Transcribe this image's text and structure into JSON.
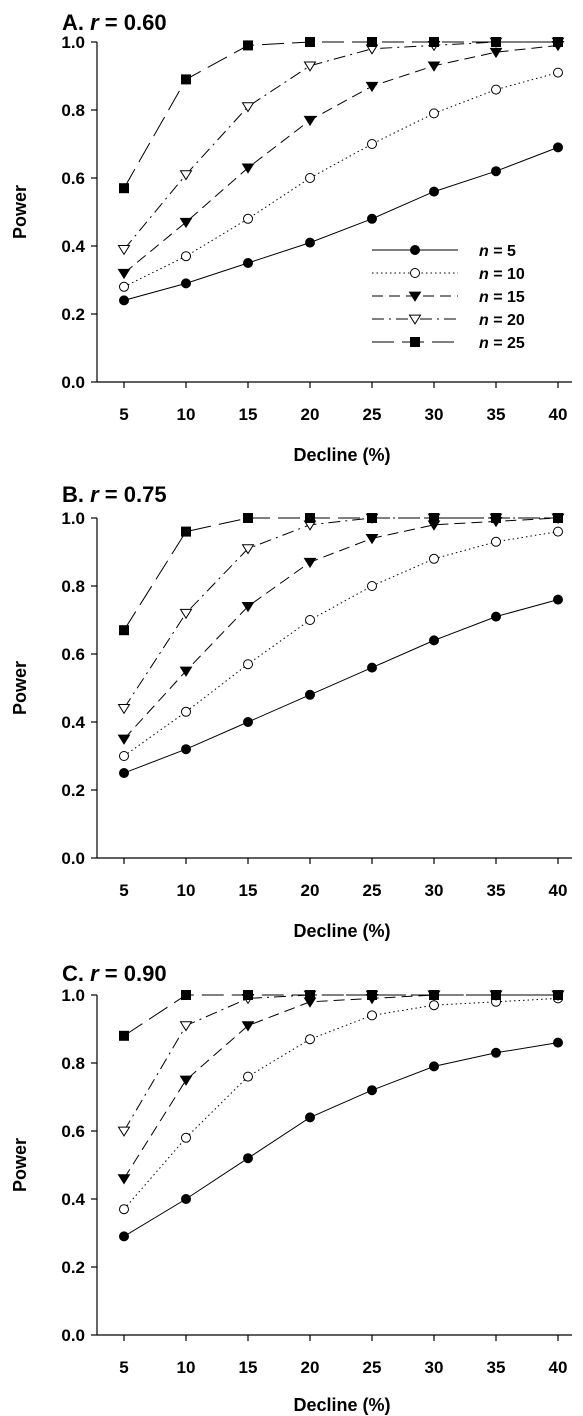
{
  "chart_data": [
    {
      "type": "line",
      "title": "A. r = 0.60",
      "title_parts": {
        "prefix": "A. ",
        "var": "r",
        "suffix": " = 0.60"
      },
      "xlabel": "Decline (%)",
      "ylabel": "Power",
      "x": [
        5,
        10,
        15,
        20,
        25,
        30,
        35,
        40
      ],
      "xticks": [
        "5",
        "10",
        "15",
        "20",
        "25",
        "30",
        "35",
        "40"
      ],
      "ylim": [
        0,
        1
      ],
      "yticks": [
        "0.0",
        "0.2",
        "0.4",
        "0.6",
        "0.8",
        "1.0"
      ],
      "grid": false,
      "legend_position": "bottom-right",
      "legend_var": "n",
      "series": [
        {
          "name": "n = 5",
          "legend_value": "= 5",
          "values": [
            0.24,
            0.29,
            0.35,
            0.41,
            0.48,
            0.56,
            0.62,
            0.69
          ]
        },
        {
          "name": "n = 10",
          "legend_value": "= 10",
          "values": [
            0.28,
            0.37,
            0.48,
            0.6,
            0.7,
            0.79,
            0.86,
            0.91
          ]
        },
        {
          "name": "n = 15",
          "legend_value": "= 15",
          "values": [
            0.32,
            0.47,
            0.63,
            0.77,
            0.87,
            0.93,
            0.97,
            0.99
          ]
        },
        {
          "name": "n = 20",
          "legend_value": "= 20",
          "values": [
            0.39,
            0.61,
            0.81,
            0.93,
            0.98,
            0.99,
            1.0,
            1.0
          ]
        },
        {
          "name": "n = 25",
          "legend_value": "= 25",
          "values": [
            0.57,
            0.89,
            0.99,
            1.0,
            1.0,
            1.0,
            1.0,
            1.0
          ]
        }
      ]
    },
    {
      "type": "line",
      "title": "B. r = 0.75",
      "title_parts": {
        "prefix": "B. ",
        "var": "r",
        "suffix": " = 0.75"
      },
      "xlabel": "Decline (%)",
      "ylabel": "Power",
      "x": [
        5,
        10,
        15,
        20,
        25,
        30,
        35,
        40
      ],
      "xticks": [
        "5",
        "10",
        "15",
        "20",
        "25",
        "30",
        "35",
        "40"
      ],
      "ylim": [
        0,
        1
      ],
      "yticks": [
        "0.0",
        "0.2",
        "0.4",
        "0.6",
        "0.8",
        "1.0"
      ],
      "grid": false,
      "series": [
        {
          "name": "n = 5",
          "values": [
            0.25,
            0.32,
            0.4,
            0.48,
            0.56,
            0.64,
            0.71,
            0.76
          ]
        },
        {
          "name": "n = 10",
          "values": [
            0.3,
            0.43,
            0.57,
            0.7,
            0.8,
            0.88,
            0.93,
            0.96
          ]
        },
        {
          "name": "n = 15",
          "values": [
            0.35,
            0.55,
            0.74,
            0.87,
            0.94,
            0.98,
            0.99,
            1.0
          ]
        },
        {
          "name": "n = 20",
          "values": [
            0.44,
            0.72,
            0.91,
            0.98,
            1.0,
            1.0,
            1.0,
            1.0
          ]
        },
        {
          "name": "n = 25",
          "values": [
            0.67,
            0.96,
            1.0,
            1.0,
            1.0,
            1.0,
            1.0,
            1.0
          ]
        }
      ]
    },
    {
      "type": "line",
      "title": "C. r = 0.90",
      "title_parts": {
        "prefix": "C. ",
        "var": "r",
        "suffix": " = 0.90"
      },
      "xlabel": "Decline (%)",
      "ylabel": "Power",
      "x": [
        5,
        10,
        15,
        20,
        25,
        30,
        35,
        40
      ],
      "xticks": [
        "5",
        "10",
        "15",
        "20",
        "25",
        "30",
        "35",
        "40"
      ],
      "ylim": [
        0,
        1
      ],
      "yticks": [
        "0.0",
        "0.2",
        "0.4",
        "0.6",
        "0.8",
        "1.0"
      ],
      "grid": false,
      "series": [
        {
          "name": "n = 5",
          "values": [
            0.29,
            0.4,
            0.52,
            0.64,
            0.72,
            0.79,
            0.83,
            0.86
          ]
        },
        {
          "name": "n = 10",
          "values": [
            0.37,
            0.58,
            0.76,
            0.87,
            0.94,
            0.97,
            0.98,
            0.99
          ]
        },
        {
          "name": "n = 15",
          "values": [
            0.46,
            0.75,
            0.91,
            0.98,
            0.99,
            1.0,
            1.0,
            1.0
          ]
        },
        {
          "name": "n = 20",
          "values": [
            0.6,
            0.91,
            0.99,
            1.0,
            1.0,
            1.0,
            1.0,
            1.0
          ]
        },
        {
          "name": "n = 25",
          "values": [
            0.88,
            1.0,
            1.0,
            1.0,
            1.0,
            1.0,
            1.0,
            1.0
          ]
        }
      ]
    }
  ],
  "series_styles": [
    {
      "marker": "filled-circle",
      "line": "solid",
      "color": "#000000"
    },
    {
      "marker": "open-circle",
      "line": "dotted",
      "color": "#000000"
    },
    {
      "marker": "filled-triangle-down",
      "line": "dashed",
      "color": "#000000"
    },
    {
      "marker": "open-triangle-down",
      "line": "dash-dot",
      "color": "#000000"
    },
    {
      "marker": "filled-square",
      "line": "long-dash",
      "color": "#000000"
    }
  ]
}
